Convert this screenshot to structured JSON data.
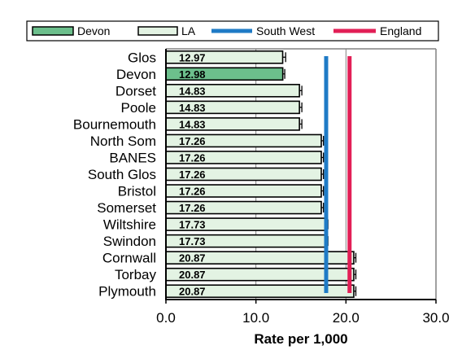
{
  "chart_data": {
    "type": "bar",
    "orientation": "horizontal",
    "title": "",
    "xlabel": "Rate per 1,000",
    "ylabel": "",
    "xlim": [
      0,
      30
    ],
    "xticks": [
      0,
      10,
      20,
      30
    ],
    "xtick_labels": [
      "0.0",
      "10.0",
      "20.0",
      "30.0"
    ],
    "grid": "vertical",
    "legend_position": "top",
    "categories": [
      "Glos",
      "Devon",
      "Dorset",
      "Poole",
      "Bournemouth",
      "North Som",
      "BANES",
      "South Glos",
      "Bristol",
      "Somerset",
      "Wiltshire",
      "Swindon",
      "Cornwall",
      "Torbay",
      "Plymouth"
    ],
    "values": [
      12.97,
      12.98,
      14.83,
      14.83,
      14.83,
      17.26,
      17.26,
      17.26,
      17.26,
      17.26,
      17.73,
      17.73,
      20.87,
      20.87,
      20.87
    ],
    "value_labels": [
      "12.97",
      "12.98",
      "14.83",
      "14.83",
      "14.83",
      "17.26",
      "17.26",
      "17.26",
      "17.26",
      "17.26",
      "17.73",
      "17.73",
      "20.87",
      "20.87",
      "20.87"
    ],
    "error_bar_upper": [
      13.3,
      13.2,
      15.1,
      15.1,
      15.1,
      17.5,
      17.5,
      17.5,
      17.5,
      17.5,
      18.0,
      18.0,
      21.1,
      21.1,
      21.1
    ],
    "highlight_category": "Devon",
    "reference_lines": [
      {
        "name": "South West",
        "value": 17.8,
        "color": "#1f7bc6"
      },
      {
        "name": "England",
        "value": 20.4,
        "color": "#e21f56"
      }
    ],
    "legend": [
      {
        "name": "Devon",
        "kind": "bar",
        "color": "#6cbf8c"
      },
      {
        "name": "LA",
        "kind": "bar",
        "color": "#e3f3e3"
      },
      {
        "name": "South West",
        "kind": "line",
        "color": "#1f7bc6"
      },
      {
        "name": "England",
        "kind": "line",
        "color": "#e21f56"
      }
    ],
    "colors": {
      "highlight": "#6cbf8c",
      "default": "#e3f3e3",
      "grid": "#808080"
    }
  }
}
